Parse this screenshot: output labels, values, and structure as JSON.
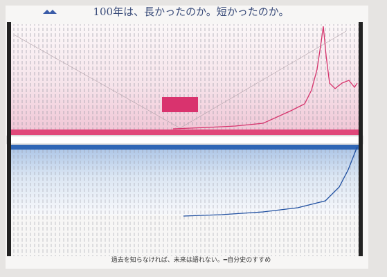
{
  "header": {
    "title": "100年は、長かったのか。短かったのか。"
  },
  "footer": {
    "tagline": "過去を知らなければ、未来は語れない。━自分史のすすめ"
  }
}
